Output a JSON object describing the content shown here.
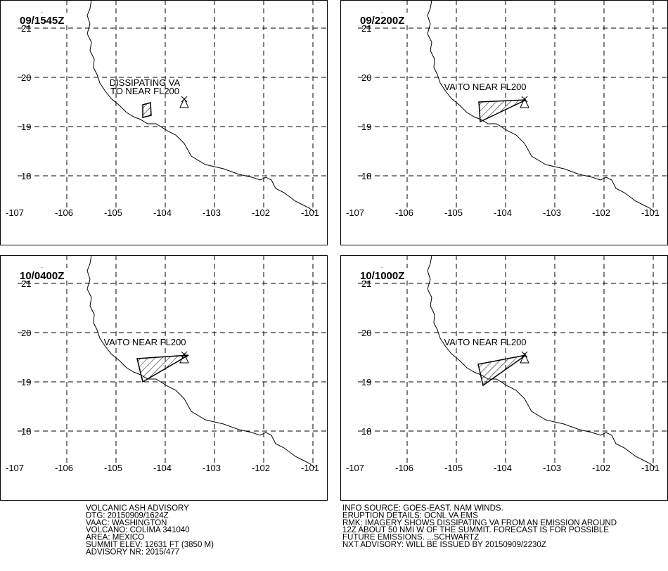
{
  "panels": [
    {
      "time": "09/1545Z",
      "annotation": [
        "DISSIPATING VA",
        "TO NEAR FL200"
      ]
    },
    {
      "time": "09/2200Z",
      "annotation": [
        "VA  TO NEAR FL200"
      ]
    },
    {
      "time": "10/0400Z",
      "annotation": [
        "VA  TO NEAR FL200"
      ]
    },
    {
      "time": "10/1000Z",
      "annotation": [
        "VA  TO NEAR FL200"
      ]
    }
  ],
  "lon_ticks": [
    -107,
    -106,
    -105,
    -104,
    -103,
    -102,
    -101
  ],
  "lat_ticks": [
    21,
    20,
    19,
    18
  ],
  "advisory_left": [
    "VOLCANIC ASH ADVISORY",
    "DTG: 20150909/1624Z",
    "VAAC: WASHINGTON",
    "VOLCANO: COLIMA 341040",
    "AREA: MEXICO",
    "SUMMIT ELEV: 12631 FT (3850 M)",
    "ADVISORY NR: 2015/477"
  ],
  "advisory_right": [
    "INFO SOURCE: GOES-EAST. NAM WINDS.",
    "ERUPTION DETAILS: OCNL VA EMS",
    "RMK: IMAGERY SHOWS DISSIPATING VA FROM AN EMISSION AROUND",
    "12Z ABOUT 50 NMI W OF THE SUMMIT. FORECAST IS FOR POSSIBLE",
    "FUTURE EMISSIONS. ...SCHWARTZ",
    "NXT ADVISORY: WILL BE ISSUED BY 20150909/2230Z"
  ]
}
